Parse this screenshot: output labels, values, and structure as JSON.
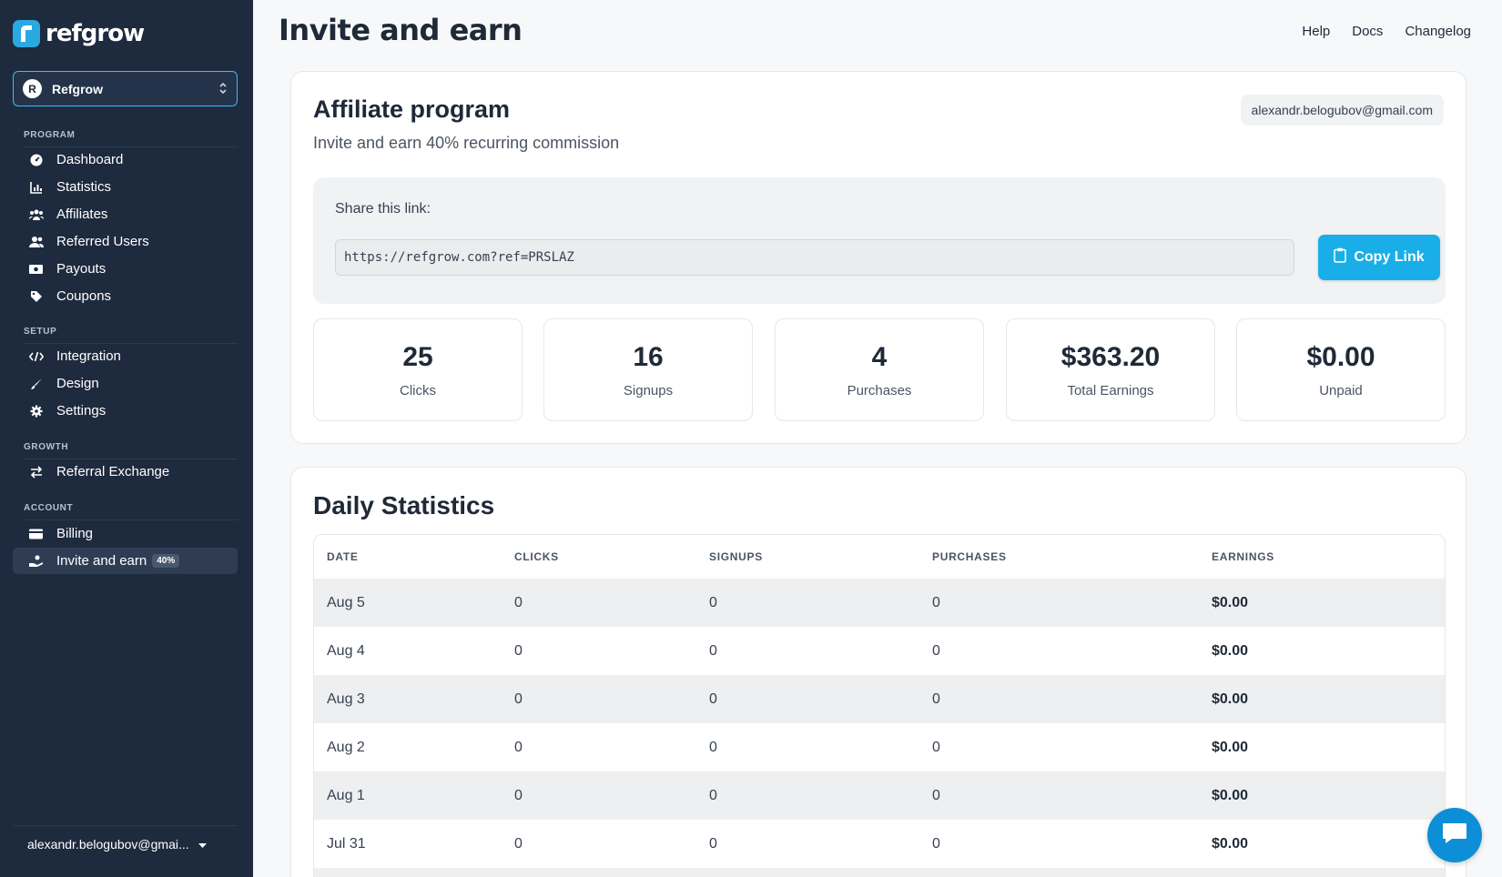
{
  "app": {
    "brand": "refgrow",
    "page_title": "Invite and earn"
  },
  "header": {
    "links": [
      "Help",
      "Docs",
      "Changelog"
    ]
  },
  "sidebar": {
    "org": {
      "initial": "R",
      "name": "Refgrow"
    },
    "sections": [
      {
        "label": "PROGRAM",
        "items": [
          {
            "label": "Dashboard",
            "icon": "dashboard-icon"
          },
          {
            "label": "Statistics",
            "icon": "chart-icon"
          },
          {
            "label": "Affiliates",
            "icon": "users-icon"
          },
          {
            "label": "Referred Users",
            "icon": "user-group-icon"
          },
          {
            "label": "Payouts",
            "icon": "money-icon"
          },
          {
            "label": "Coupons",
            "icon": "tag-icon"
          }
        ]
      },
      {
        "label": "SETUP",
        "items": [
          {
            "label": "Integration",
            "icon": "code-icon"
          },
          {
            "label": "Design",
            "icon": "brush-icon"
          },
          {
            "label": "Settings",
            "icon": "gear-icon"
          }
        ]
      },
      {
        "label": "GROWTH",
        "items": [
          {
            "label": "Referral Exchange",
            "icon": "exchange-icon"
          }
        ]
      },
      {
        "label": "ACCOUNT",
        "items": [
          {
            "label": "Billing",
            "icon": "credit-card-icon"
          },
          {
            "label": "Invite and earn",
            "icon": "hand-coin-icon",
            "badge": "40%",
            "active": true
          }
        ]
      }
    ],
    "account_email": "alexandr.belogubov@gmai..."
  },
  "affiliate": {
    "title": "Affiliate program",
    "subtitle": "Invite and earn 40% recurring commission",
    "email": "alexandr.belogubov@gmail.com",
    "share_label": "Share this link:",
    "share_url": "https://refgrow.com?ref=PRSLAZ",
    "copy_label": "Copy Link",
    "metrics": [
      {
        "value": "25",
        "label": "Clicks"
      },
      {
        "value": "16",
        "label": "Signups"
      },
      {
        "value": "4",
        "label": "Purchases"
      },
      {
        "value": "$363.20",
        "label": "Total Earnings"
      },
      {
        "value": "$0.00",
        "label": "Unpaid"
      }
    ]
  },
  "daily": {
    "title": "Daily Statistics",
    "columns": [
      "DATE",
      "CLICKS",
      "SIGNUPS",
      "PURCHASES",
      "EARNINGS"
    ],
    "rows": [
      [
        "Aug 5",
        "0",
        "0",
        "0",
        "$0.00"
      ],
      [
        "Aug 4",
        "0",
        "0",
        "0",
        "$0.00"
      ],
      [
        "Aug 3",
        "0",
        "0",
        "0",
        "$0.00"
      ],
      [
        "Aug 2",
        "0",
        "0",
        "0",
        "$0.00"
      ],
      [
        "Aug 1",
        "0",
        "0",
        "0",
        "$0.00"
      ],
      [
        "Jul 31",
        "0",
        "0",
        "0",
        "$0.00"
      ],
      [
        "",
        "",
        "",
        "",
        ""
      ]
    ]
  },
  "colors": {
    "sidebar_bg": "#1e2a3e",
    "accent": "#1aaee8",
    "chat": "#0d8fd8"
  }
}
